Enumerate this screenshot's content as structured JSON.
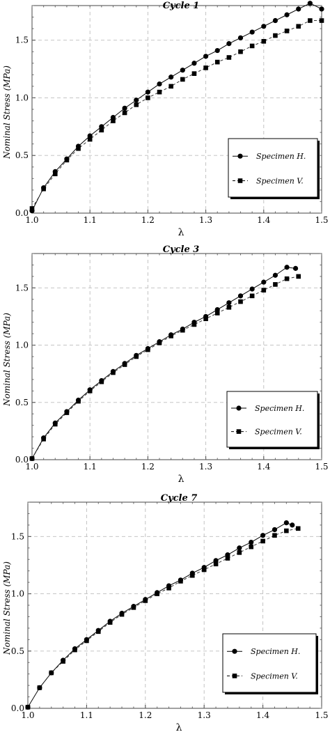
{
  "chart_data": [
    {
      "type": "line",
      "title": "Cycle 1",
      "xlabel": "λ",
      "ylabel": "Nominal Stress (MPa)",
      "xlim": [
        1.0,
        1.5
      ],
      "ylim": [
        0.0,
        1.8
      ],
      "xticks": [
        "1.0",
        "1.1",
        "1.2",
        "1.3",
        "1.4",
        "1.5"
      ],
      "yticks": [
        "0.0",
        "0.5",
        "1.0",
        "1.5"
      ],
      "grid": true,
      "legend_position": "center-right",
      "x": [
        1.0,
        1.02,
        1.04,
        1.06,
        1.08,
        1.1,
        1.12,
        1.14,
        1.16,
        1.18,
        1.2,
        1.22,
        1.24,
        1.26,
        1.28,
        1.3,
        1.32,
        1.34,
        1.36,
        1.38,
        1.4,
        1.42,
        1.44,
        1.46,
        1.48
      ],
      "series": [
        {
          "name": "Specimen H.",
          "marker": "circle",
          "line": "solid",
          "x": [
            1.0,
            1.02,
            1.04,
            1.06,
            1.08,
            1.1,
            1.12,
            1.14,
            1.16,
            1.18,
            1.2,
            1.22,
            1.24,
            1.26,
            1.28,
            1.3,
            1.32,
            1.34,
            1.36,
            1.38,
            1.4,
            1.42,
            1.44,
            1.46,
            1.48,
            1.5
          ],
          "values": [
            0.02,
            0.22,
            0.36,
            0.47,
            0.58,
            0.67,
            0.75,
            0.83,
            0.91,
            0.98,
            1.05,
            1.12,
            1.18,
            1.24,
            1.3,
            1.36,
            1.41,
            1.47,
            1.52,
            1.57,
            1.62,
            1.67,
            1.72,
            1.77,
            1.82,
            1.77
          ]
        },
        {
          "name": "Specimen V.",
          "marker": "square",
          "line": "dashed",
          "x": [
            1.0,
            1.02,
            1.04,
            1.06,
            1.08,
            1.1,
            1.12,
            1.14,
            1.16,
            1.18,
            1.2,
            1.22,
            1.24,
            1.26,
            1.28,
            1.3,
            1.32,
            1.34,
            1.36,
            1.38,
            1.4,
            1.42,
            1.44,
            1.46,
            1.48,
            1.5
          ],
          "values": [
            0.04,
            0.21,
            0.34,
            0.46,
            0.56,
            0.64,
            0.72,
            0.8,
            0.87,
            0.94,
            1.0,
            1.05,
            1.1,
            1.16,
            1.21,
            1.26,
            1.31,
            1.35,
            1.4,
            1.45,
            1.49,
            1.54,
            1.58,
            1.62,
            1.67,
            1.67
          ]
        }
      ]
    },
    {
      "type": "line",
      "title": "Cycle 3",
      "xlabel": "λ",
      "ylabel": "Nominal Stress (MPa)",
      "xlim": [
        1.0,
        1.5
      ],
      "ylim": [
        0.0,
        1.8
      ],
      "xticks": [
        "1.0",
        "1.1",
        "1.2",
        "1.3",
        "1.4",
        "1.5"
      ],
      "yticks": [
        "0.0",
        "0.5",
        "1.0",
        "1.5"
      ],
      "grid": true,
      "legend_position": "bottom-right",
      "series": [
        {
          "name": "Specimen H.",
          "marker": "circle",
          "line": "solid",
          "x": [
            1.0,
            1.02,
            1.04,
            1.06,
            1.08,
            1.1,
            1.12,
            1.14,
            1.16,
            1.18,
            1.2,
            1.22,
            1.24,
            1.26,
            1.28,
            1.3,
            1.32,
            1.34,
            1.36,
            1.38,
            1.4,
            1.42,
            1.44,
            1.455
          ],
          "values": [
            0.01,
            0.19,
            0.32,
            0.42,
            0.52,
            0.61,
            0.69,
            0.77,
            0.84,
            0.91,
            0.97,
            1.03,
            1.09,
            1.14,
            1.2,
            1.25,
            1.31,
            1.37,
            1.43,
            1.49,
            1.55,
            1.61,
            1.68,
            1.67
          ]
        },
        {
          "name": "Specimen V.",
          "marker": "square",
          "line": "dashed",
          "x": [
            1.0,
            1.02,
            1.04,
            1.06,
            1.08,
            1.1,
            1.12,
            1.14,
            1.16,
            1.18,
            1.2,
            1.22,
            1.24,
            1.26,
            1.28,
            1.3,
            1.32,
            1.34,
            1.36,
            1.38,
            1.4,
            1.42,
            1.44,
            1.46
          ],
          "values": [
            0.01,
            0.18,
            0.31,
            0.41,
            0.51,
            0.6,
            0.68,
            0.76,
            0.83,
            0.9,
            0.96,
            1.02,
            1.08,
            1.13,
            1.18,
            1.23,
            1.28,
            1.33,
            1.38,
            1.43,
            1.48,
            1.53,
            1.58,
            1.6
          ]
        }
      ]
    },
    {
      "type": "line",
      "title": "Cycle 7",
      "xlabel": "λ",
      "ylabel": "Nominal Stress (MPa)",
      "xlim": [
        1.0,
        1.5
      ],
      "ylim": [
        0.0,
        1.8
      ],
      "xticks": [
        "1.0",
        "1.1",
        "1.2",
        "1.3",
        "1.4",
        "1.5"
      ],
      "yticks": [
        "0.0",
        "0.5",
        "1.0",
        "1.5"
      ],
      "grid": true,
      "legend_position": "bottom-right",
      "series": [
        {
          "name": "Specimen H.",
          "marker": "circle",
          "line": "solid",
          "x": [
            1.0,
            1.02,
            1.04,
            1.06,
            1.08,
            1.1,
            1.12,
            1.14,
            1.16,
            1.18,
            1.2,
            1.22,
            1.24,
            1.26,
            1.28,
            1.3,
            1.32,
            1.34,
            1.36,
            1.38,
            1.4,
            1.42,
            1.44,
            1.45
          ],
          "values": [
            0.01,
            0.18,
            0.31,
            0.42,
            0.52,
            0.6,
            0.68,
            0.76,
            0.83,
            0.89,
            0.95,
            1.01,
            1.07,
            1.12,
            1.18,
            1.23,
            1.29,
            1.34,
            1.4,
            1.45,
            1.51,
            1.56,
            1.62,
            1.6
          ]
        },
        {
          "name": "Specimen V.",
          "marker": "square",
          "line": "dashed",
          "x": [
            1.0,
            1.02,
            1.04,
            1.06,
            1.08,
            1.1,
            1.12,
            1.14,
            1.16,
            1.18,
            1.2,
            1.22,
            1.24,
            1.26,
            1.28,
            1.3,
            1.32,
            1.34,
            1.36,
            1.38,
            1.4,
            1.42,
            1.44,
            1.46
          ],
          "values": [
            0.01,
            0.18,
            0.31,
            0.41,
            0.51,
            0.59,
            0.67,
            0.75,
            0.82,
            0.88,
            0.94,
            1.0,
            1.05,
            1.11,
            1.16,
            1.21,
            1.26,
            1.31,
            1.36,
            1.41,
            1.46,
            1.51,
            1.55,
            1.57
          ]
        }
      ]
    }
  ]
}
